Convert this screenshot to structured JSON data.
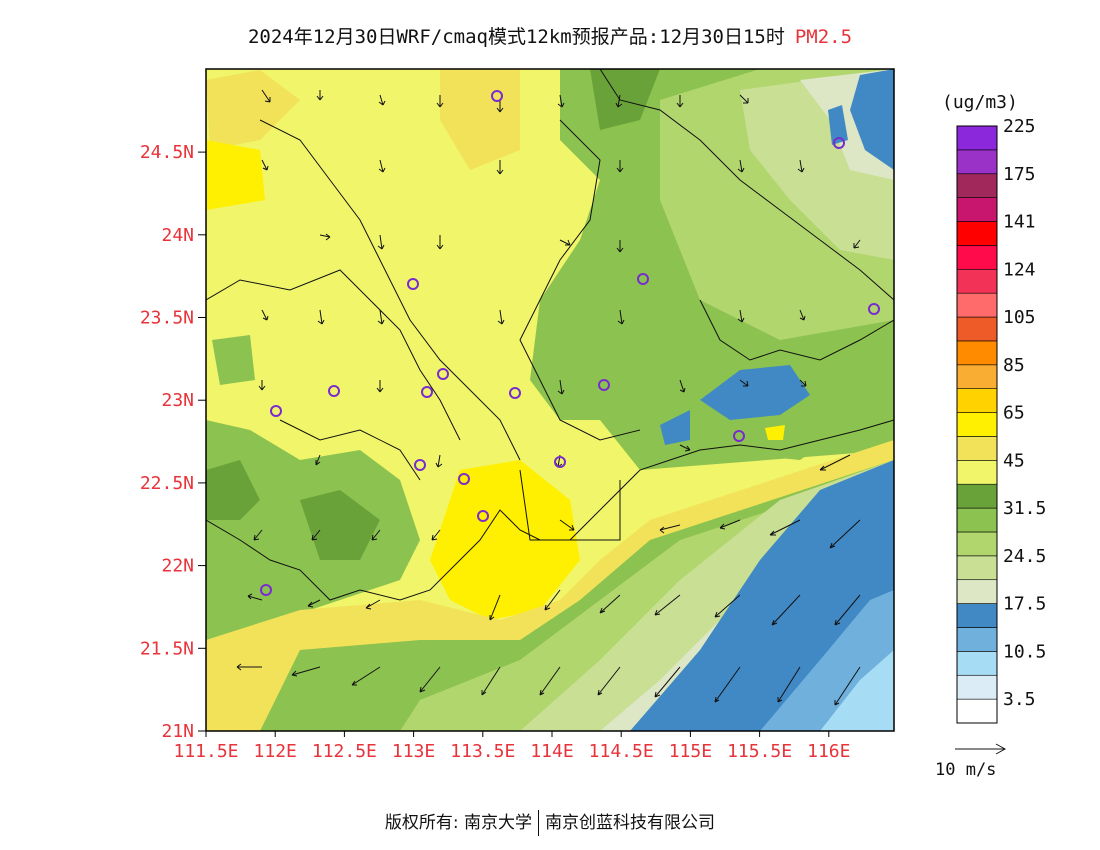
{
  "title": {
    "main": "2024年12月30日WRF/cmaq模式12km预报产品:12月30日15时",
    "pollutant": "PM2.5"
  },
  "legend": {
    "unit": "(ug/m3)",
    "bins": [
      {
        "color": "#ffffff"
      },
      {
        "color": "#dcecf7"
      },
      {
        "color": "#a6dcf4"
      },
      {
        "color": "#6fb0dd"
      },
      {
        "color": "#4189c4"
      },
      {
        "color": "#dde7c6"
      },
      {
        "color": "#c8df94"
      },
      {
        "color": "#b2d66e"
      },
      {
        "color": "#8cc24f"
      },
      {
        "color": "#6aa23a"
      },
      {
        "color": "#f0f56a"
      },
      {
        "color": "#f2e25a"
      },
      {
        "color": "#ffef00"
      },
      {
        "color": "#ffd200"
      },
      {
        "color": "#f9ad32"
      },
      {
        "color": "#ff8c00"
      },
      {
        "color": "#ee5a28"
      },
      {
        "color": "#ff6b6b"
      },
      {
        "color": "#f23256"
      },
      {
        "color": "#ff0a4a"
      },
      {
        "color": "#ff0000"
      },
      {
        "color": "#c8166e"
      },
      {
        "color": "#a0285a"
      },
      {
        "color": "#9a32c8"
      },
      {
        "color": "#8c28dc"
      }
    ],
    "labels": [
      "3.5",
      "10.5",
      "17.5",
      "24.5",
      "31.5",
      "45",
      "65",
      "85",
      "105",
      "124",
      "141",
      "175",
      "225"
    ]
  },
  "axes": {
    "x_ticks": [
      "111.5E",
      "112E",
      "112.5E",
      "113E",
      "113.5E",
      "114E",
      "114.5E",
      "115E",
      "115.5E",
      "116E"
    ],
    "y_ticks": [
      "21N",
      "21.5N",
      "22N",
      "22.5N",
      "23N",
      "23.5N",
      "24N",
      "24.5N"
    ]
  },
  "wind_scale": {
    "label": "10 m/s"
  },
  "footer": {
    "left": "版权所有: 南京大学",
    "right": "南京创蓝科技有限公司"
  }
}
